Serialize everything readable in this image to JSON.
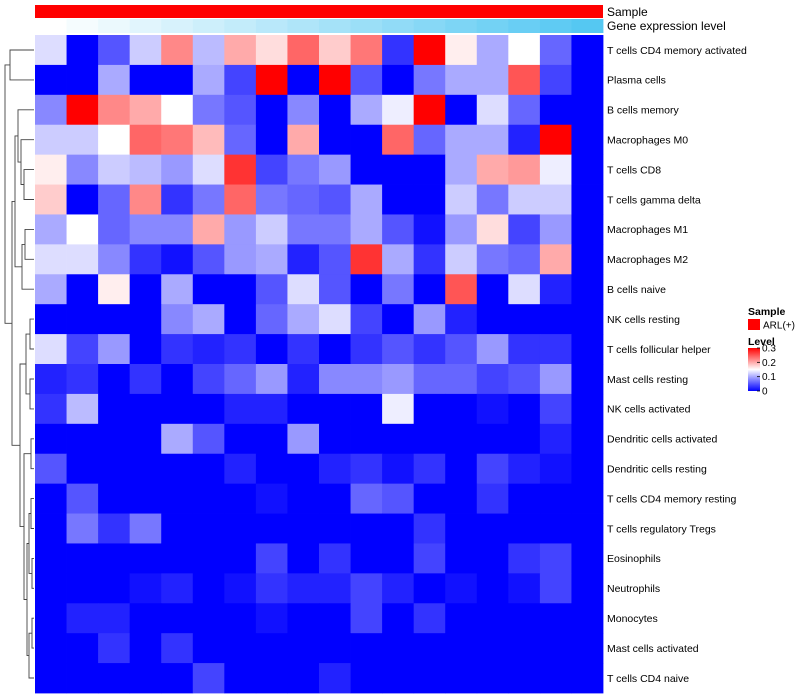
{
  "chart_data": {
    "type": "heatmap",
    "title": "",
    "annotation_rows": [
      {
        "name": "Sample",
        "kind": "categorical",
        "color": "#ff0000"
      },
      {
        "name": "Gene expression level",
        "kind": "gradient",
        "color_start": "#ffffff",
        "color_end": "#55c8f2"
      }
    ],
    "row_labels": [
      "T cells CD4 memory activated",
      "Plasma cells",
      "B cells memory",
      "Macrophages M0",
      "T cells CD8",
      "T cells gamma delta",
      "Macrophages M1",
      "Macrophages M2",
      "B cells naive",
      "NK cells resting",
      "T cells follicular helper",
      "Mast cells resting",
      "NK cells activated",
      "Dendritic cells activated",
      "Dendritic cells resting",
      "T cells CD4 memory resting",
      "T cells regulatory  Tregs",
      "Eosinophils",
      "Neutrophils",
      "Monocytes",
      "Mast cells activated",
      "T cells CD4 naive"
    ],
    "n_columns": 18,
    "values": [
      [
        0.13,
        0.0,
        0.05,
        0.12,
        0.22,
        0.11,
        0.2,
        0.17,
        0.24,
        0.18,
        0.23,
        0.03,
        0.3,
        0.16,
        0.1,
        0.15,
        0.06,
        0.0
      ],
      [
        0.0,
        0.0,
        0.1,
        0.0,
        0.0,
        0.1,
        0.04,
        0.3,
        0.0,
        0.3,
        0.05,
        0.0,
        0.07,
        0.1,
        0.1,
        0.25,
        0.04,
        0.0
      ],
      [
        0.08,
        0.3,
        0.22,
        0.2,
        0.15,
        0.07,
        0.05,
        0.0,
        0.08,
        0.0,
        0.1,
        0.14,
        0.3,
        0.0,
        0.13,
        0.06,
        0.0,
        0.0
      ],
      [
        0.12,
        0.12,
        0.15,
        0.24,
        0.23,
        0.19,
        0.06,
        0.0,
        0.2,
        0.0,
        0.0,
        0.24,
        0.06,
        0.1,
        0.1,
        0.02,
        0.3,
        0.0
      ],
      [
        0.16,
        0.08,
        0.12,
        0.11,
        0.09,
        0.13,
        0.27,
        0.04,
        0.07,
        0.09,
        0.0,
        0.0,
        0.0,
        0.1,
        0.2,
        0.21,
        0.14,
        0.0
      ],
      [
        0.18,
        0.0,
        0.06,
        0.22,
        0.03,
        0.07,
        0.24,
        0.07,
        0.06,
        0.05,
        0.1,
        0.0,
        0.0,
        0.12,
        0.07,
        0.12,
        0.12,
        0.0
      ],
      [
        0.1,
        0.15,
        0.06,
        0.08,
        0.08,
        0.2,
        0.09,
        0.12,
        0.07,
        0.07,
        0.1,
        0.05,
        0.01,
        0.09,
        0.17,
        0.04,
        0.09,
        0.0
      ],
      [
        0.13,
        0.13,
        0.08,
        0.03,
        0.01,
        0.05,
        0.09,
        0.1,
        0.02,
        0.05,
        0.27,
        0.1,
        0.03,
        0.12,
        0.07,
        0.06,
        0.2,
        0.0
      ],
      [
        0.1,
        0.0,
        0.16,
        0.0,
        0.1,
        0.0,
        0.0,
        0.05,
        0.13,
        0.05,
        0.0,
        0.07,
        0.0,
        0.25,
        0.0,
        0.13,
        0.02,
        0.0
      ],
      [
        0.0,
        0.0,
        0.0,
        0.0,
        0.08,
        0.1,
        0.0,
        0.06,
        0.1,
        0.13,
        0.04,
        0.0,
        0.09,
        0.02,
        0.0,
        0.0,
        0.0,
        0.0
      ],
      [
        0.13,
        0.04,
        0.09,
        0.0,
        0.03,
        0.02,
        0.03,
        0.0,
        0.03,
        0.0,
        0.03,
        0.05,
        0.03,
        0.05,
        0.09,
        0.03,
        0.03,
        0.0
      ],
      [
        0.02,
        0.03,
        0.0,
        0.03,
        0.0,
        0.04,
        0.06,
        0.09,
        0.02,
        0.08,
        0.08,
        0.09,
        0.06,
        0.06,
        0.04,
        0.05,
        0.09,
        0.0
      ],
      [
        0.03,
        0.11,
        0.0,
        0.0,
        0.0,
        0.0,
        0.02,
        0.02,
        0.0,
        0.0,
        0.0,
        0.14,
        0.0,
        0.0,
        0.01,
        0.0,
        0.04,
        0.0
      ],
      [
        0.0,
        0.0,
        0.0,
        0.0,
        0.1,
        0.05,
        0.0,
        0.0,
        0.09,
        0.0,
        0.0,
        0.0,
        0.0,
        0.0,
        0.0,
        0.0,
        0.02,
        0.0
      ],
      [
        0.05,
        0.0,
        0.0,
        0.0,
        0.0,
        0.0,
        0.02,
        0.0,
        0.0,
        0.02,
        0.03,
        0.01,
        0.03,
        0.0,
        0.04,
        0.02,
        0.01,
        0.0
      ],
      [
        0.0,
        0.05,
        0.0,
        0.0,
        0.0,
        0.0,
        0.0,
        0.01,
        0.0,
        0.0,
        0.06,
        0.05,
        0.0,
        0.0,
        0.03,
        0.0,
        0.0,
        0.0
      ],
      [
        0.0,
        0.07,
        0.03,
        0.07,
        0.0,
        0.0,
        0.0,
        0.0,
        0.0,
        0.0,
        0.0,
        0.0,
        0.03,
        0.0,
        0.0,
        0.0,
        0.0,
        0.0
      ],
      [
        0.0,
        0.0,
        0.0,
        0.0,
        0.0,
        0.0,
        0.0,
        0.04,
        0.0,
        0.03,
        0.0,
        0.0,
        0.04,
        0.0,
        0.0,
        0.03,
        0.04,
        0.0
      ],
      [
        0.0,
        0.0,
        0.0,
        0.01,
        0.02,
        0.0,
        0.01,
        0.03,
        0.02,
        0.02,
        0.04,
        0.02,
        0.0,
        0.01,
        0.0,
        0.01,
        0.04,
        0.0
      ],
      [
        0.0,
        0.02,
        0.02,
        0.0,
        0.0,
        0.0,
        0.0,
        0.01,
        0.0,
        0.0,
        0.04,
        0.0,
        0.03,
        0.0,
        0.0,
        0.0,
        0.0,
        0.0
      ],
      [
        0.0,
        0.0,
        0.03,
        0.0,
        0.03,
        0.0,
        0.0,
        0.0,
        0.0,
        0.0,
        0.0,
        0.0,
        0.0,
        0.0,
        0.0,
        0.0,
        0.0,
        0.0
      ],
      [
        0.0,
        0.0,
        0.0,
        0.0,
        0.0,
        0.04,
        0.0,
        0.0,
        0.0,
        0.02,
        0.0,
        0.0,
        0.0,
        0.0,
        0.0,
        0.0,
        0.0,
        0.0
      ]
    ],
    "color_scale": {
      "min": 0,
      "mid": 0.15,
      "max": 0.3,
      "low": "#0000ff",
      "midcolor": "#ffffff",
      "high": "#ff0000"
    },
    "legend": {
      "sample_title": "Sample",
      "sample_entry": "ARL(+)",
      "level_title": "Level",
      "ticks": [
        {
          "value": 0.3,
          "label": "0.3"
        },
        {
          "value": 0.2,
          "label": "0.2"
        },
        {
          "value": 0.1,
          "label": "0.1"
        },
        {
          "value": 0,
          "label": "0"
        }
      ],
      "position": "right"
    }
  }
}
